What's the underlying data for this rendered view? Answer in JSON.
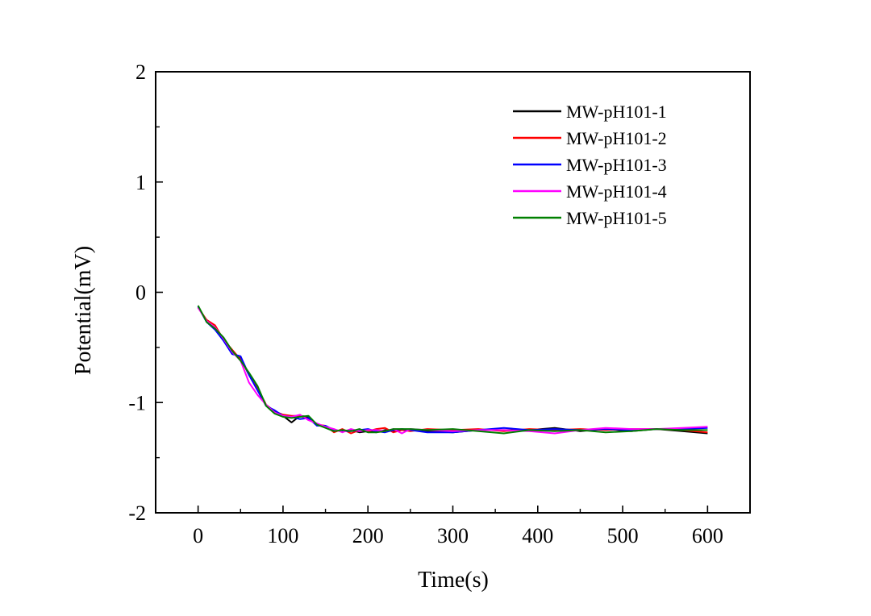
{
  "chart_data": {
    "type": "line",
    "title": "",
    "xlabel": "Time(s)",
    "ylabel": "Potential(mV)",
    "xlim": [
      -50,
      650
    ],
    "ylim": [
      -2,
      2
    ],
    "xticks": [
      0,
      100,
      200,
      300,
      400,
      500,
      600
    ],
    "yticks": [
      -2,
      -1,
      0,
      1,
      2
    ],
    "xtick_labels": [
      "0",
      "100",
      "200",
      "300",
      "400",
      "500",
      "600"
    ],
    "ytick_labels": [
      "-2",
      "-1",
      "0",
      "1",
      "2"
    ],
    "grid": false,
    "legend_position": "top-right",
    "x": [
      0,
      10,
      20,
      30,
      40,
      50,
      60,
      70,
      80,
      90,
      100,
      110,
      120,
      130,
      140,
      150,
      160,
      170,
      180,
      190,
      200,
      210,
      220,
      230,
      240,
      250,
      270,
      300,
      330,
      360,
      390,
      420,
      450,
      480,
      510,
      540,
      570,
      600
    ],
    "series": [
      {
        "name": "MW-pH101-1",
        "color": "#000000",
        "values": [
          -0.13,
          -0.26,
          -0.33,
          -0.43,
          -0.55,
          -0.6,
          -0.75,
          -0.87,
          -1.02,
          -1.08,
          -1.12,
          -1.18,
          -1.12,
          -1.13,
          -1.2,
          -1.22,
          -1.25,
          -1.26,
          -1.25,
          -1.27,
          -1.26,
          -1.27,
          -1.25,
          -1.26,
          -1.25,
          -1.25,
          -1.26,
          -1.27,
          -1.25,
          -1.25,
          -1.25,
          -1.23,
          -1.26,
          -1.24,
          -1.26,
          -1.24,
          -1.26,
          -1.28
        ]
      },
      {
        "name": "MW-pH101-2",
        "color": "#ff0000",
        "values": [
          -0.14,
          -0.25,
          -0.3,
          -0.43,
          -0.52,
          -0.61,
          -0.74,
          -0.88,
          -1.02,
          -1.08,
          -1.11,
          -1.12,
          -1.12,
          -1.15,
          -1.2,
          -1.21,
          -1.27,
          -1.24,
          -1.28,
          -1.25,
          -1.26,
          -1.24,
          -1.23,
          -1.27,
          -1.25,
          -1.26,
          -1.24,
          -1.25,
          -1.24,
          -1.26,
          -1.24,
          -1.25,
          -1.24,
          -1.25,
          -1.24,
          -1.24,
          -1.25,
          -1.27
        ]
      },
      {
        "name": "MW-pH101-3",
        "color": "#0000ff",
        "values": [
          -0.13,
          -0.27,
          -0.34,
          -0.44,
          -0.56,
          -0.58,
          -0.75,
          -0.89,
          -1.03,
          -1.07,
          -1.12,
          -1.13,
          -1.15,
          -1.14,
          -1.21,
          -1.21,
          -1.25,
          -1.26,
          -1.26,
          -1.25,
          -1.24,
          -1.26,
          -1.27,
          -1.25,
          -1.24,
          -1.25,
          -1.27,
          -1.27,
          -1.25,
          -1.23,
          -1.25,
          -1.24,
          -1.25,
          -1.24,
          -1.25,
          -1.24,
          -1.24,
          -1.23
        ]
      },
      {
        "name": "MW-pH101-4",
        "color": "#ff00ff",
        "values": [
          -0.14,
          -0.26,
          -0.32,
          -0.42,
          -0.54,
          -0.62,
          -0.82,
          -0.93,
          -1.02,
          -1.09,
          -1.12,
          -1.13,
          -1.11,
          -1.16,
          -1.19,
          -1.22,
          -1.24,
          -1.27,
          -1.24,
          -1.26,
          -1.25,
          -1.25,
          -1.26,
          -1.24,
          -1.28,
          -1.24,
          -1.25,
          -1.26,
          -1.25,
          -1.25,
          -1.26,
          -1.28,
          -1.25,
          -1.23,
          -1.24,
          -1.24,
          -1.23,
          -1.22
        ]
      },
      {
        "name": "MW-pH101-5",
        "color": "#008000",
        "values": [
          -0.12,
          -0.27,
          -0.33,
          -0.41,
          -0.53,
          -0.62,
          -0.73,
          -0.85,
          -1.03,
          -1.1,
          -1.13,
          -1.14,
          -1.13,
          -1.12,
          -1.2,
          -1.23,
          -1.26,
          -1.25,
          -1.26,
          -1.24,
          -1.27,
          -1.27,
          -1.26,
          -1.24,
          -1.24,
          -1.24,
          -1.25,
          -1.24,
          -1.26,
          -1.28,
          -1.25,
          -1.26,
          -1.25,
          -1.27,
          -1.26,
          -1.24,
          -1.25,
          -1.25
        ]
      }
    ]
  }
}
